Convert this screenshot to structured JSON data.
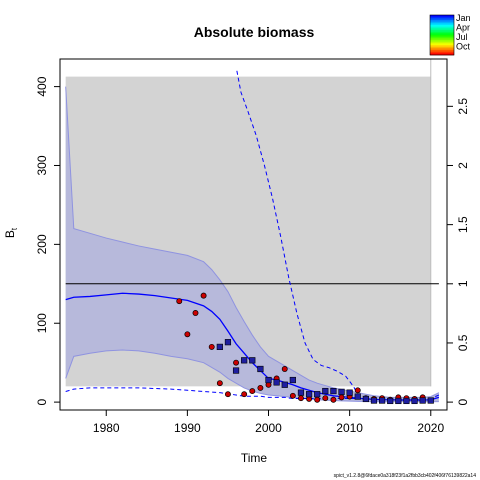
{
  "chart_data": {
    "type": "scatter",
    "title": "Absolute biomass",
    "xlabel": "Time",
    "ylabel": "B",
    "ylabel_sub": "t",
    "ylabel_right": ".",
    "xlim": [
      1974.3,
      2022.0
    ],
    "ylim": [
      -10,
      435
    ],
    "ylim_right": [
      -0.0667,
      2.9
    ],
    "x_ticks": [
      1980,
      1990,
      2000,
      2010,
      2020
    ],
    "y_ticks": [
      0,
      100,
      200,
      300,
      400
    ],
    "y_right_ticks": [
      0,
      0.5,
      1,
      1.5,
      2,
      2.5
    ],
    "reference_line_right": 1.0,
    "legend": {
      "position": "top-right",
      "labels": [
        "Jan",
        "Apr",
        "Jul",
        "Oct"
      ],
      "colors": [
        "#0000ff",
        "#00ff00",
        "#ff9900",
        "#ff0000"
      ]
    },
    "colors": {
      "median": "#0000ff",
      "band": "#b7b9db",
      "band_edge": "#8f93e0",
      "shade": "#d3d3d3",
      "index1_fill": "#cc0000",
      "index2_fill": "#1e1ea0"
    },
    "median": {
      "x": [
        1975,
        1976,
        1978,
        1980,
        1982,
        1984,
        1986,
        1988,
        1990,
        1992,
        1993,
        1994,
        1995,
        1996,
        1997,
        1998,
        1999,
        2000,
        2001,
        2002,
        2003,
        2004,
        2005,
        2006,
        2007,
        2008,
        2009,
        2010,
        2011,
        2012,
        2013,
        2014,
        2015,
        2016,
        2017,
        2018,
        2019,
        2020,
        2021
      ],
      "y": [
        130,
        133,
        134,
        136,
        138,
        137,
        135,
        132,
        129,
        122,
        115,
        105,
        90,
        74,
        62,
        50,
        40,
        30,
        28,
        25,
        22,
        18,
        15,
        12,
        10,
        8,
        7,
        6,
        5,
        4,
        3.5,
        3,
        3,
        2.5,
        2.5,
        2.5,
        2.5,
        3,
        6
      ]
    },
    "band_upper": {
      "x": [
        1975,
        1976,
        1978,
        1980,
        1982,
        1984,
        1986,
        1988,
        1990,
        1992,
        1993,
        1994,
        1995,
        1996,
        1997,
        1998,
        1999,
        2000,
        2001,
        2002,
        2003,
        2004,
        2005,
        2006,
        2007,
        2008,
        2009,
        2010,
        2011,
        2012,
        2013,
        2014,
        2015,
        2016,
        2017,
        2018,
        2019,
        2020,
        2021
      ],
      "y": [
        400,
        220,
        214,
        208,
        203,
        198,
        194,
        190,
        186,
        178,
        168,
        155,
        140,
        120,
        102,
        85,
        70,
        58,
        52,
        46,
        40,
        34,
        28,
        24,
        21,
        18,
        16,
        14,
        12,
        10,
        8,
        7,
        6,
        6,
        6,
        6,
        6,
        7,
        12
      ]
    },
    "band_lower": {
      "x": [
        1975,
        1976,
        1978,
        1980,
        1982,
        1984,
        1986,
        1988,
        1990,
        1992,
        1993,
        1994,
        1995,
        1996,
        1997,
        1998,
        1999,
        2000,
        2001,
        2002,
        2003,
        2004,
        2005,
        2006,
        2007,
        2008,
        2009,
        2010,
        2011,
        2012,
        2013,
        2014,
        2015,
        2016,
        2017,
        2018,
        2019,
        2020,
        2021
      ],
      "y": [
        30,
        58,
        62,
        65,
        66,
        65,
        62,
        58,
        55,
        50,
        44,
        38,
        30,
        24,
        18,
        14,
        11,
        9,
        8,
        7,
        6,
        5,
        4,
        3,
        2.5,
        2,
        1.5,
        1.2,
        1,
        0.8,
        0.6,
        0.5,
        0.5,
        0.5,
        0.5,
        0.5,
        0.5,
        0.5,
        0.6
      ]
    },
    "ffmsy_median": {
      "x": [
        1975,
        1976,
        1978,
        1980,
        1984,
        1988,
        1990,
        1992,
        1994,
        1995,
        1996,
        1997,
        1998,
        1999,
        2000,
        2001,
        2002,
        2003,
        2004,
        2005,
        2006,
        2007,
        2008,
        2009,
        2010,
        2011,
        2012,
        2014,
        2016,
        2018,
        2020,
        2021
      ],
      "y": [
        0.09,
        0.11,
        0.12,
        0.12,
        0.12,
        0.11,
        0.1,
        0.09,
        0.08,
        0.07,
        0.06,
        0.05,
        0.05,
        0.05,
        0.04,
        0.04,
        0.04,
        0.03,
        0.03,
        0.03,
        0.03,
        0.03,
        0.03,
        0.03,
        0.03,
        0.03,
        0.03,
        0.02,
        0.02,
        0.02,
        0.03,
        0.06
      ]
    },
    "ffmsy_upper": {
      "x": [
        1996.1,
        1996.6,
        1997.5,
        1998.5,
        1999.5,
        2000.5,
        2001.5,
        2002.5,
        2003.5,
        2004.5,
        2005.5,
        2006.5,
        2007.5,
        2008.5,
        2009.5,
        2010.5,
        2011.0
      ],
      "y": [
        2.8,
        2.62,
        2.45,
        2.25,
        2.0,
        1.72,
        1.4,
        1.05,
        0.75,
        0.5,
        0.36,
        0.31,
        0.29,
        0.26,
        0.22,
        0.13,
        0.06
      ]
    },
    "index1": {
      "x": [
        1989,
        1990,
        1991,
        1992,
        1993,
        1994,
        1995,
        1996,
        1997,
        1998,
        1999,
        2000,
        2001,
        2002,
        2003,
        2004,
        2005,
        2006,
        2007,
        2008,
        2009,
        2010,
        2011,
        2012,
        2013,
        2014,
        2015,
        2016,
        2017,
        2018,
        2019,
        2020
      ],
      "y": [
        128,
        86,
        113,
        135,
        70,
        24,
        10,
        50,
        10,
        14,
        18,
        22,
        30,
        42,
        8,
        5,
        4,
        3,
        5,
        3,
        6,
        7,
        15,
        5,
        4,
        5,
        3,
        6,
        5,
        4,
        6,
        2
      ]
    },
    "index2": {
      "x": [
        1994,
        1995,
        1996,
        1997,
        1998,
        1999,
        2000,
        2001,
        2002,
        2003,
        2004,
        2005,
        2006,
        2007,
        2008,
        2009,
        2010,
        2011,
        2012,
        2013,
        2014,
        2015,
        2016,
        2017,
        2018,
        2019,
        2020
      ],
      "y": [
        70,
        76,
        40,
        53,
        53,
        42,
        28,
        25,
        22,
        28,
        12,
        10,
        10,
        14,
        14,
        13,
        12,
        7,
        4,
        2,
        2,
        1.5,
        1.5,
        1.5,
        1.5,
        2,
        2
      ]
    },
    "footer": "spict_v1.2.8@6fdace0a318f23f1a2fbb3cb402f406f76139822a14"
  }
}
